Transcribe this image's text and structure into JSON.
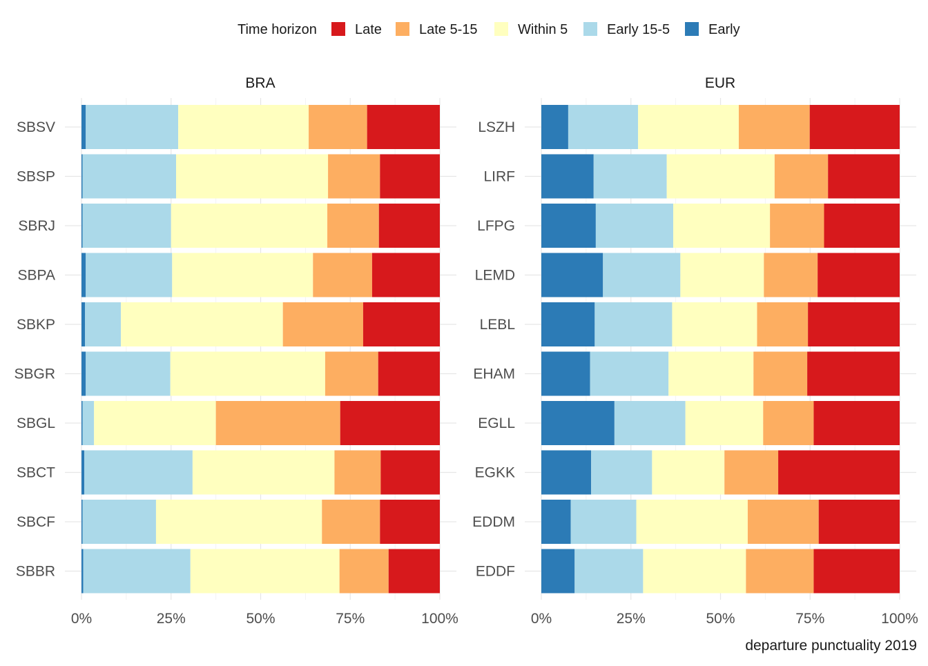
{
  "chart_data": {
    "type": "bar",
    "orientation": "horizontal",
    "stacked": true,
    "caption": "departure punctuality 2019",
    "legend": {
      "title": "Time horizon",
      "position": "top",
      "entries": [
        {
          "name": "Late",
          "color": "#d7191c"
        },
        {
          "name": "Late 5-15",
          "color": "#fdae61"
        },
        {
          "name": "Within 5",
          "color": "#ffffbf"
        },
        {
          "name": "Early 15-5",
          "color": "#abd9e9"
        },
        {
          "name": "Early",
          "color": "#2c7bb6"
        }
      ]
    },
    "stack_order": [
      "Early",
      "Early 15-5",
      "Within 5",
      "Late 5-15",
      "Late"
    ],
    "x_ticks": [
      "0%",
      "25%",
      "50%",
      "75%",
      "100%"
    ],
    "xlim": [
      0,
      100
    ],
    "grid": true,
    "panels": [
      {
        "title": "BRA",
        "categories": [
          "SBSV",
          "SBSP",
          "SBRJ",
          "SBPA",
          "SBKP",
          "SBGR",
          "SBGL",
          "SBCT",
          "SBCF",
          "SBBR"
        ],
        "series": [
          {
            "name": "Early",
            "values": [
              1.2,
              0.3,
              0.3,
              1.2,
              1.0,
              1.2,
              0.3,
              0.8,
              0.3,
              0.5
            ]
          },
          {
            "name": "Early 15-5",
            "values": [
              25.8,
              26.1,
              24.7,
              24.1,
              10.0,
              23.6,
              3.2,
              30.2,
              20.5,
              29.9
            ]
          },
          {
            "name": "Within 5",
            "values": [
              36.4,
              42.4,
              43.6,
              39.3,
              45.2,
              43.2,
              34.0,
              39.6,
              46.3,
              41.6
            ]
          },
          {
            "name": "Late 5-15",
            "values": [
              16.3,
              14.5,
              14.4,
              16.5,
              22.4,
              14.8,
              34.7,
              12.9,
              16.2,
              13.7
            ]
          },
          {
            "name": "Late",
            "values": [
              20.3,
              16.7,
              17.0,
              18.9,
              21.4,
              17.2,
              27.8,
              16.5,
              16.7,
              14.3
            ]
          }
        ]
      },
      {
        "title": "EUR",
        "categories": [
          "LSZH",
          "LIRF",
          "LFPG",
          "LEMD",
          "LEBL",
          "EHAM",
          "EGLL",
          "EGKK",
          "EDDM",
          "EDDF"
        ],
        "series": [
          {
            "name": "Early",
            "values": [
              7.5,
              14.6,
              15.2,
              17.2,
              14.9,
              13.6,
              20.4,
              13.9,
              8.2,
              9.3
            ]
          },
          {
            "name": "Early 15-5",
            "values": [
              19.5,
              20.4,
              21.6,
              21.6,
              21.6,
              21.9,
              19.8,
              17.0,
              18.3,
              19.1
            ]
          },
          {
            "name": "Within 5",
            "values": [
              28.1,
              30.1,
              27.0,
              23.3,
              23.7,
              23.7,
              21.7,
              20.2,
              31.1,
              28.7
            ]
          },
          {
            "name": "Late 5-15",
            "values": [
              19.8,
              14.9,
              15.1,
              15.0,
              14.2,
              15.0,
              14.1,
              15.0,
              19.8,
              18.9
            ]
          },
          {
            "name": "Late",
            "values": [
              25.1,
              20.0,
              21.1,
              22.9,
              25.6,
              25.8,
              24.0,
              33.9,
              22.6,
              24.0
            ]
          }
        ]
      }
    ]
  }
}
